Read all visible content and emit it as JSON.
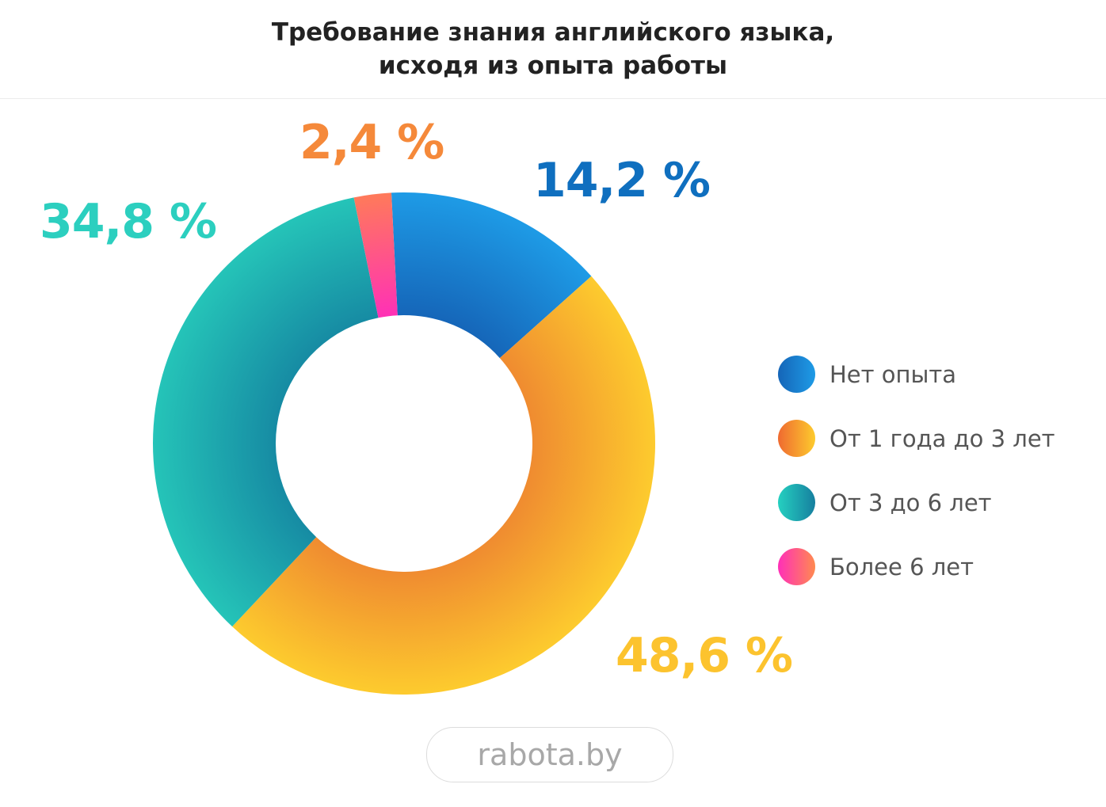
{
  "title_line1": "Требование знания английского языка,",
  "title_line2": "исходя из опыта работы",
  "watermark": "rabota.by",
  "chart_data": {
    "type": "pie",
    "donut": true,
    "title": "Требование знания английского языка, исходя из опыта работы",
    "unit": "%",
    "slices": [
      {
        "name": "Нет опыта",
        "value": 14.2,
        "label": "14,2 %",
        "color": "#1877cc",
        "gradient": [
          "#1565b8",
          "#1e9be6"
        ]
      },
      {
        "name": "От 1 года до 3 лет",
        "value": 48.6,
        "label": "48,6 %",
        "color": "#fcc32e",
        "gradient": [
          "#ef8a30",
          "#fdcb2e"
        ]
      },
      {
        "name": "От 3 до 6 лет",
        "value": 34.8,
        "label": "34,8 %",
        "color": "#2ccfbf",
        "gradient": [
          "#168aa3",
          "#25c4b8"
        ]
      },
      {
        "name": "Более 6 лет",
        "value": 2.4,
        "label": "2,4 %",
        "color": "#f5893a",
        "gradient": [
          "#ff2fb8",
          "#ff7a5a"
        ]
      }
    ],
    "label_colors": [
      "#0f6fbf",
      "#fcc32e",
      "#2ccfbf",
      "#f5893a"
    ],
    "legend_placement": "right"
  }
}
